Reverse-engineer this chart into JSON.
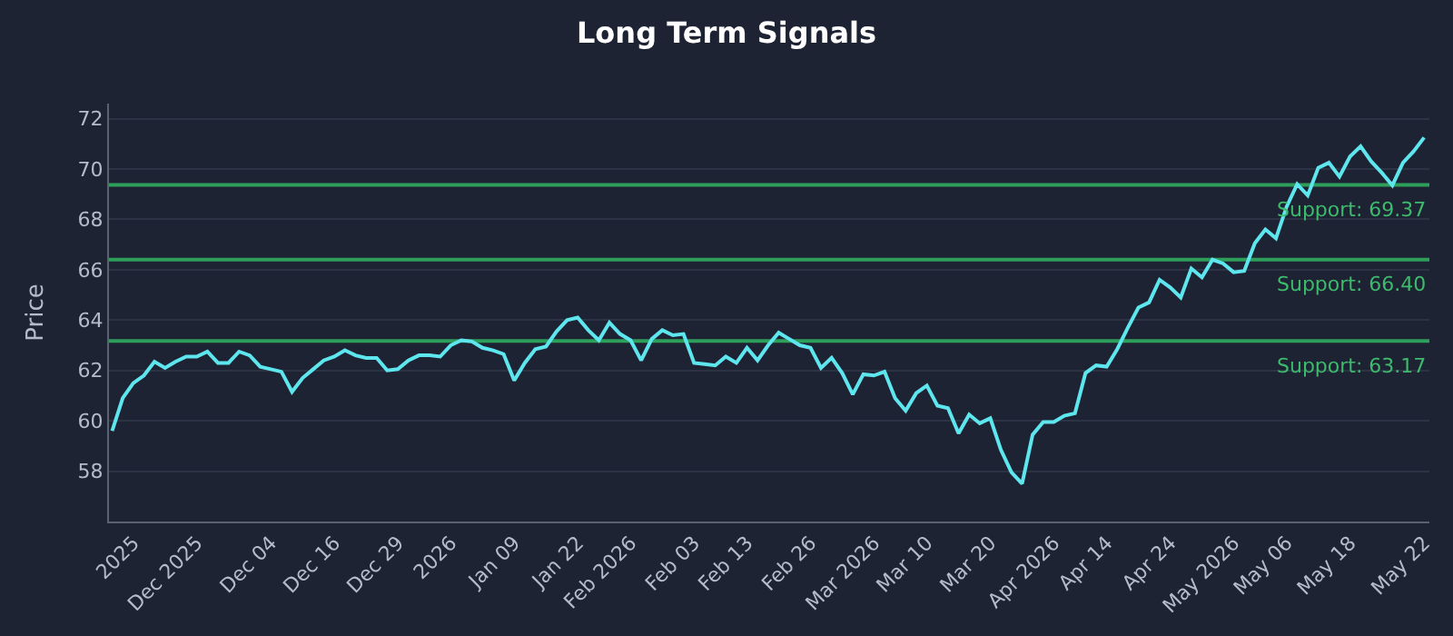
{
  "chart_data": {
    "type": "line",
    "title": "Long Term Signals",
    "ylabel": "Price",
    "categories": [
      null,
      null,
      "2025",
      null,
      null,
      null,
      null,
      null,
      "Dec 2025",
      null,
      null,
      null,
      null,
      null,
      null,
      "Dec 04",
      null,
      null,
      null,
      null,
      null,
      "Dec 16",
      null,
      null,
      null,
      null,
      null,
      "Dec 29",
      null,
      null,
      null,
      null,
      "2026",
      null,
      null,
      null,
      null,
      null,
      "Jan 09",
      null,
      null,
      null,
      null,
      null,
      "Jan 22",
      null,
      null,
      null,
      null,
      "Feb 2026",
      null,
      null,
      null,
      null,
      null,
      "Feb 03",
      null,
      null,
      null,
      null,
      "Feb 13",
      null,
      null,
      null,
      null,
      null,
      "Feb 26",
      null,
      null,
      null,
      null,
      null,
      "Mar 2026",
      null,
      null,
      null,
      null,
      "Mar 10",
      null,
      null,
      null,
      null,
      null,
      "Mar 20",
      null,
      null,
      null,
      null,
      null,
      "Apr 2026",
      null,
      null,
      null,
      null,
      "Apr 14",
      null,
      null,
      null,
      null,
      null,
      "Apr 24",
      null,
      null,
      null,
      null,
      null,
      "May 2026",
      null,
      null,
      null,
      null,
      "May 06",
      null,
      null,
      null,
      null,
      null,
      "May 18",
      null,
      null,
      null,
      null,
      null,
      null,
      "May 22"
    ],
    "series": [
      {
        "color": "#5ee6ee",
        "values": [
          59.6,
          60.9,
          61.5,
          61.8,
          62.35,
          62.1,
          62.35,
          62.55,
          62.55,
          62.75,
          62.3,
          62.3,
          62.75,
          62.6,
          62.15,
          62.05,
          61.95,
          61.15,
          61.7,
          62.05,
          62.4,
          62.55,
          62.8,
          62.6,
          62.5,
          62.5,
          62.0,
          62.05,
          62.4,
          62.6,
          62.6,
          62.55,
          63.0,
          63.2,
          63.15,
          62.9,
          62.8,
          62.65,
          61.6,
          62.3,
          62.85,
          62.95,
          63.55,
          64.0,
          64.1,
          63.6,
          63.2,
          63.9,
          63.45,
          63.2,
          62.4,
          63.25,
          63.6,
          63.4,
          63.45,
          62.3,
          62.25,
          62.2,
          62.55,
          62.3,
          62.9,
          62.4,
          63.0,
          63.5,
          63.25,
          63.0,
          62.9,
          62.1,
          62.5,
          61.9,
          61.05,
          61.85,
          61.8,
          61.95,
          60.9,
          60.4,
          61.1,
          61.4,
          60.6,
          60.5,
          59.5,
          60.25,
          59.9,
          60.1,
          58.85,
          57.95,
          57.5,
          59.45,
          59.95,
          59.95,
          60.2,
          60.3,
          61.9,
          62.2,
          62.15,
          62.85,
          63.7,
          64.5,
          64.7,
          65.6,
          65.3,
          64.9,
          66.05,
          65.7,
          66.4,
          66.25,
          65.9,
          65.95,
          67.05,
          67.6,
          67.25,
          68.5,
          69.4,
          68.95,
          70.05,
          70.25,
          69.7,
          70.5,
          70.9,
          70.3,
          69.85,
          69.35,
          70.25,
          70.7,
          71.25
        ]
      }
    ],
    "ylim": [
      56,
      72.6
    ],
    "yticks": [
      58,
      60,
      62,
      64,
      66,
      68,
      70,
      72
    ],
    "grid": "y",
    "legend": false,
    "marker": "none",
    "line_style": "solid",
    "ref_lines": [
      {
        "axis": "y",
        "value": 69.37,
        "label": "Support: 69.37",
        "color": "#2e9e5b"
      },
      {
        "axis": "y",
        "value": 66.4,
        "label": "Support: 66.40",
        "color": "#2e9e5b"
      },
      {
        "axis": "y",
        "value": 63.17,
        "label": "Support: 63.17",
        "color": "#2e9e5b"
      }
    ]
  }
}
